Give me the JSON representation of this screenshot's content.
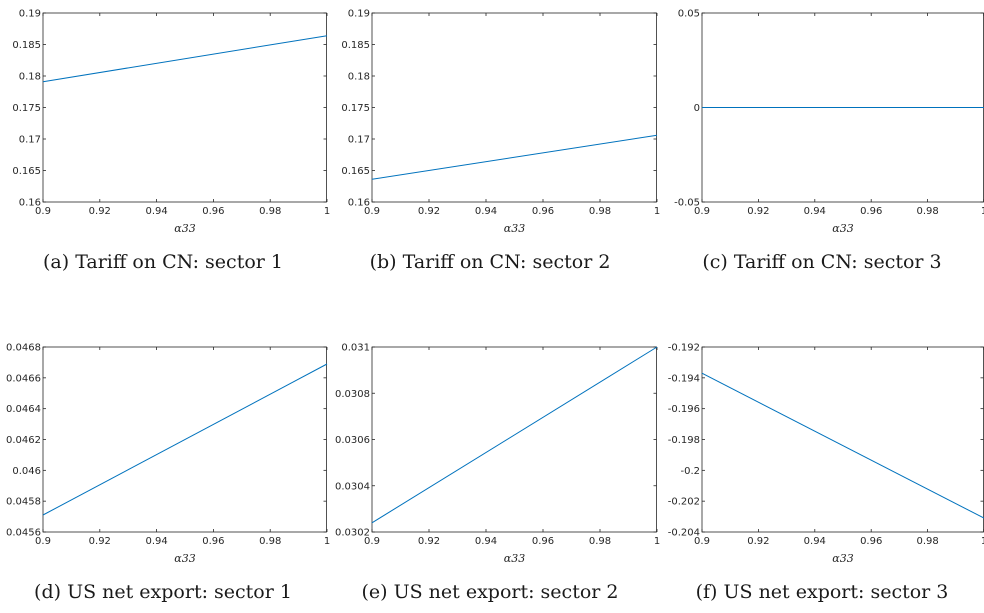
{
  "chart_data": [
    {
      "type": "line",
      "caption": "(a) Tariff on CN: sector 1",
      "xlabel": "α33",
      "xlim": [
        0.9,
        1
      ],
      "ylim": [
        0.16,
        0.19
      ],
      "xticks": [
        "0.9",
        "0.92",
        "0.94",
        "0.96",
        "0.98",
        "1"
      ],
      "yticks": [
        "0.16",
        "0.165",
        "0.17",
        "0.175",
        "0.18",
        "0.185",
        "0.19"
      ],
      "series": [
        {
          "x": [
            0.9,
            1.0
          ],
          "y": [
            0.1791,
            0.1864
          ]
        }
      ]
    },
    {
      "type": "line",
      "caption": "(b) Tariff on CN: sector 2",
      "xlabel": "α33",
      "xlim": [
        0.9,
        1
      ],
      "ylim": [
        0.16,
        0.19
      ],
      "xticks": [
        "0.9",
        "0.92",
        "0.94",
        "0.96",
        "0.98",
        "1"
      ],
      "yticks": [
        "0.16",
        "0.165",
        "0.17",
        "0.175",
        "0.18",
        "0.185",
        "0.19"
      ],
      "series": [
        {
          "x": [
            0.9,
            1.0
          ],
          "y": [
            0.1636,
            0.1706
          ]
        }
      ]
    },
    {
      "type": "line",
      "caption": "(c) Tariff on CN: sector 3",
      "xlabel": "α33",
      "xlim": [
        0.9,
        1
      ],
      "ylim": [
        -0.05,
        0.05
      ],
      "xticks": [
        "0.9",
        "0.92",
        "0.94",
        "0.96",
        "0.98",
        "1"
      ],
      "yticks": [
        "-0.05",
        "0",
        "0.05"
      ],
      "series": [
        {
          "x": [
            0.9,
            1.0
          ],
          "y": [
            0,
            0
          ]
        }
      ]
    },
    {
      "type": "line",
      "caption": "(d) US net export: sector 1",
      "xlabel": "α33",
      "xlim": [
        0.9,
        1
      ],
      "ylim": [
        0.0456,
        0.0468
      ],
      "xticks": [
        "0.9",
        "0.92",
        "0.94",
        "0.96",
        "0.98",
        "1"
      ],
      "yticks": [
        "0.0456",
        "0.0458",
        "0.046",
        "0.0462",
        "0.0464",
        "0.0466",
        "0.0468"
      ],
      "series": [
        {
          "x": [
            0.9,
            1.0
          ],
          "y": [
            0.04571,
            0.04669
          ]
        }
      ]
    },
    {
      "type": "line",
      "caption": "(e) US net export: sector 2",
      "xlabel": "α33",
      "xlim": [
        0.9,
        1
      ],
      "ylim": [
        0.0302,
        0.031
      ],
      "xticks": [
        "0.9",
        "0.92",
        "0.94",
        "0.96",
        "0.98",
        "1"
      ],
      "yticks": [
        "0.0302",
        "0.0304",
        "0.0306",
        "0.0308",
        "0.031"
      ],
      "series": [
        {
          "x": [
            0.9,
            1.0
          ],
          "y": [
            0.03024,
            0.031
          ]
        }
      ]
    },
    {
      "type": "line",
      "caption": "(f) US net export: sector 3",
      "xlabel": "α33",
      "xlim": [
        0.9,
        1
      ],
      "ylim": [
        -0.204,
        -0.192
      ],
      "xticks": [
        "0.9",
        "0.92",
        "0.94",
        "0.96",
        "0.98",
        "1"
      ],
      "yticks": [
        "-0.204",
        "-0.202",
        "-0.2",
        "-0.198",
        "-0.196",
        "-0.194",
        "-0.192"
      ],
      "series": [
        {
          "x": [
            0.9,
            1.0
          ],
          "y": [
            -0.1937,
            -0.2031
          ]
        }
      ]
    }
  ],
  "colors": {
    "line": "#0072BD",
    "axis": "#262626",
    "text": "#262626"
  }
}
